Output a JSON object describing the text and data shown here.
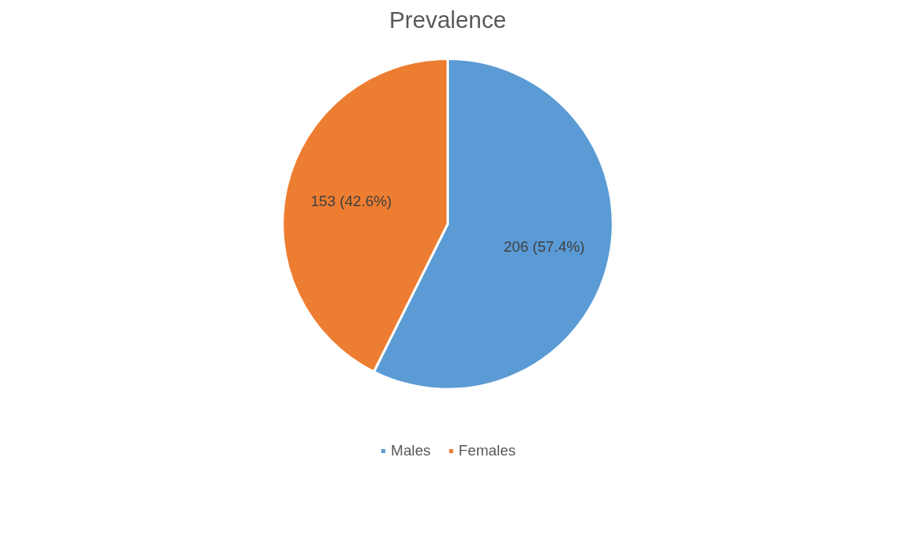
{
  "chart_data": {
    "type": "pie",
    "title": "Prevalence",
    "categories": [
      "Males",
      "Females"
    ],
    "values": [
      206,
      153
    ],
    "colors": [
      "#5b9bd5",
      "#ed7d31"
    ],
    "value_labels": [
      "206 (57.4%)",
      "153 (42.6%)"
    ],
    "legend": "bottom"
  }
}
